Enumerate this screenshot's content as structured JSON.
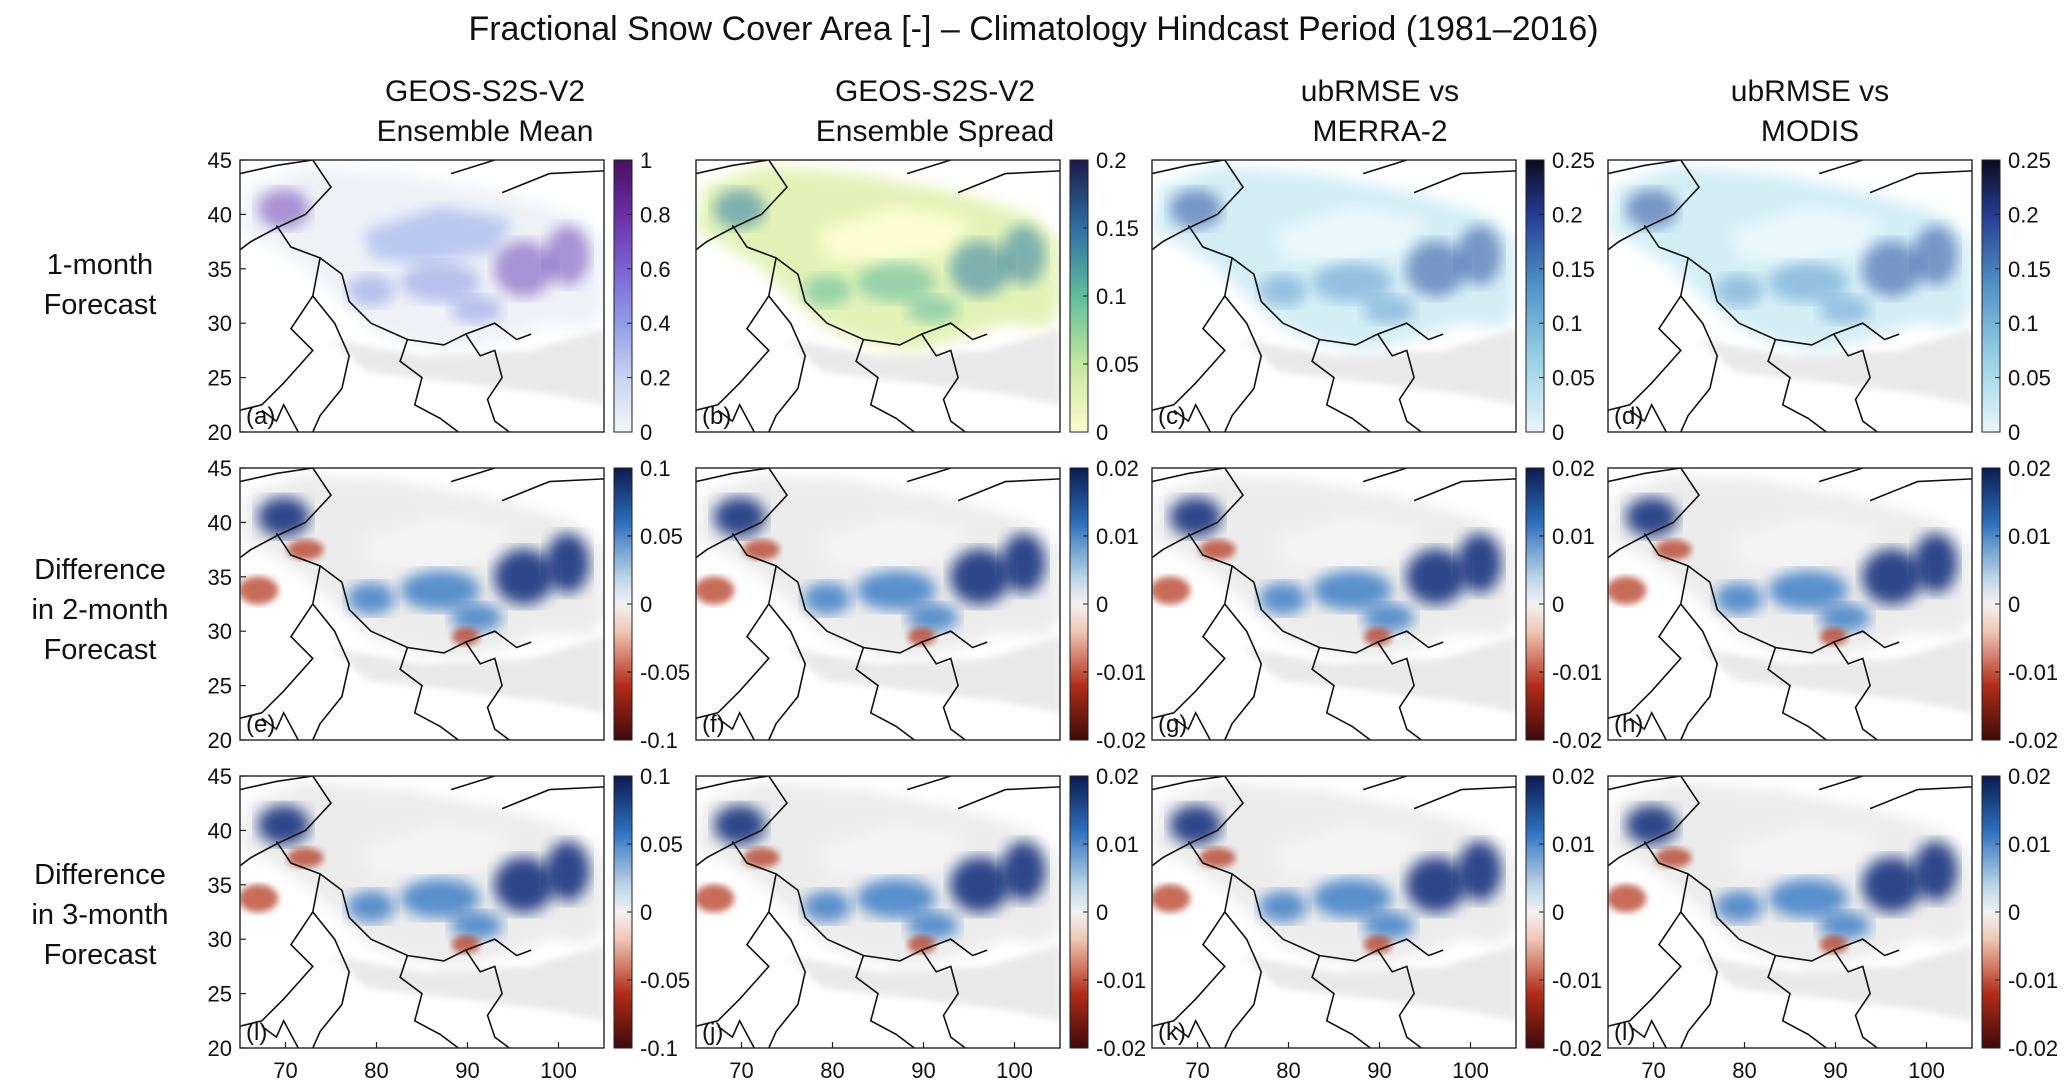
{
  "title": "Fractional Snow Cover Area [-] – Climatology Hindcast Period (1981–2016)",
  "columns": [
    {
      "line1": "GEOS-S2S-V2",
      "line2": "Ensemble Mean"
    },
    {
      "line1": "GEOS-S2S-V2",
      "line2": "Ensemble Spread"
    },
    {
      "line1": "ubRMSE vs",
      "line2": "MERRA-2"
    },
    {
      "line1": "ubRMSE vs",
      "line2": "MODIS"
    }
  ],
  "rows": [
    {
      "lines": [
        "1-month",
        "Forecast"
      ]
    },
    {
      "lines": [
        "Difference",
        "in 2-month",
        "Forecast"
      ]
    },
    {
      "lines": [
        "Difference",
        "in 3-month",
        "Forecast"
      ]
    }
  ],
  "axes": {
    "lat_ticks": [
      "45",
      "40",
      "35",
      "30",
      "25",
      "20"
    ],
    "lon_ticks": [
      "70",
      "80",
      "90",
      "100"
    ],
    "lat_range": [
      20,
      45
    ],
    "lon_range": [
      65,
      105
    ]
  },
  "panels": [
    {
      "label": "(a)",
      "scheme": "purple",
      "ticks": [
        "1",
        "0.8",
        "0.6",
        "0.4",
        "0.2",
        "0"
      ]
    },
    {
      "label": "(b)",
      "scheme": "ygb",
      "ticks": [
        "0.2",
        "0.15",
        "0.1",
        "0.05",
        "0"
      ]
    },
    {
      "label": "(c)",
      "scheme": "blue",
      "ticks": [
        "0.25",
        "0.2",
        "0.15",
        "0.1",
        "0.05",
        "0"
      ]
    },
    {
      "label": "(d)",
      "scheme": "blue",
      "ticks": [
        "0.25",
        "0.2",
        "0.15",
        "0.1",
        "0.05",
        "0"
      ]
    },
    {
      "label": "(e)",
      "scheme": "div",
      "ticks": [
        "0.1",
        "0.05",
        "0",
        "-0.05",
        "-0.1"
      ]
    },
    {
      "label": "(f)",
      "scheme": "div",
      "ticks": [
        "0.02",
        "0.01",
        "0",
        "-0.01",
        "-0.02"
      ]
    },
    {
      "label": "(g)",
      "scheme": "div",
      "ticks": [
        "0.02",
        "0.01",
        "0",
        "-0.01",
        "-0.02"
      ]
    },
    {
      "label": "(h)",
      "scheme": "div",
      "ticks": [
        "0.02",
        "0.01",
        "0",
        "-0.01",
        "-0.02"
      ]
    },
    {
      "label": "(l)",
      "scheme": "div",
      "ticks": [
        "0.1",
        "0.05",
        "0",
        "-0.05",
        "-0.1"
      ]
    },
    {
      "label": "(j)",
      "scheme": "div",
      "ticks": [
        "0.02",
        "0.01",
        "0",
        "-0.01",
        "-0.02"
      ]
    },
    {
      "label": "(k)",
      "scheme": "div",
      "ticks": [
        "0.02",
        "0.01",
        "0",
        "-0.01",
        "-0.02"
      ]
    },
    {
      "label": "(l)",
      "scheme": "div",
      "ticks": [
        "0.02",
        "0.01",
        "0",
        "-0.01",
        "-0.02"
      ]
    }
  ]
}
